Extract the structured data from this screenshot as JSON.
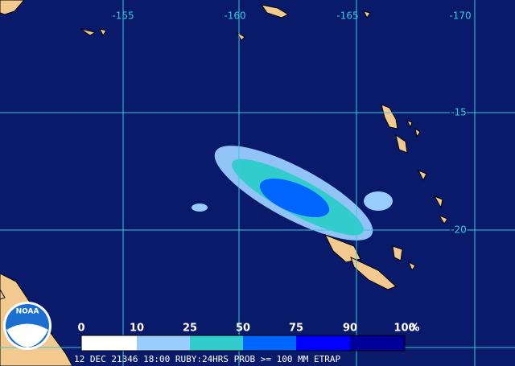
{
  "map": {
    "lon_labels": [
      "-155",
      "-160",
      "-165",
      "-170"
    ],
    "lat_labels": [
      "-15",
      "-20"
    ],
    "logo": "NOAA",
    "legend": {
      "labels": [
        "0",
        "10",
        "25",
        "50",
        "75",
        "90",
        "100"
      ],
      "unit": "%",
      "colors": [
        "#ffffff",
        "#99ccff",
        "#33cccc",
        "#0066ff",
        "#0000ff",
        "#000099"
      ]
    },
    "caption": "12 DEC 21346 18:00 RUBY:24HRS PROB >= 100 MM ETRAP"
  }
}
